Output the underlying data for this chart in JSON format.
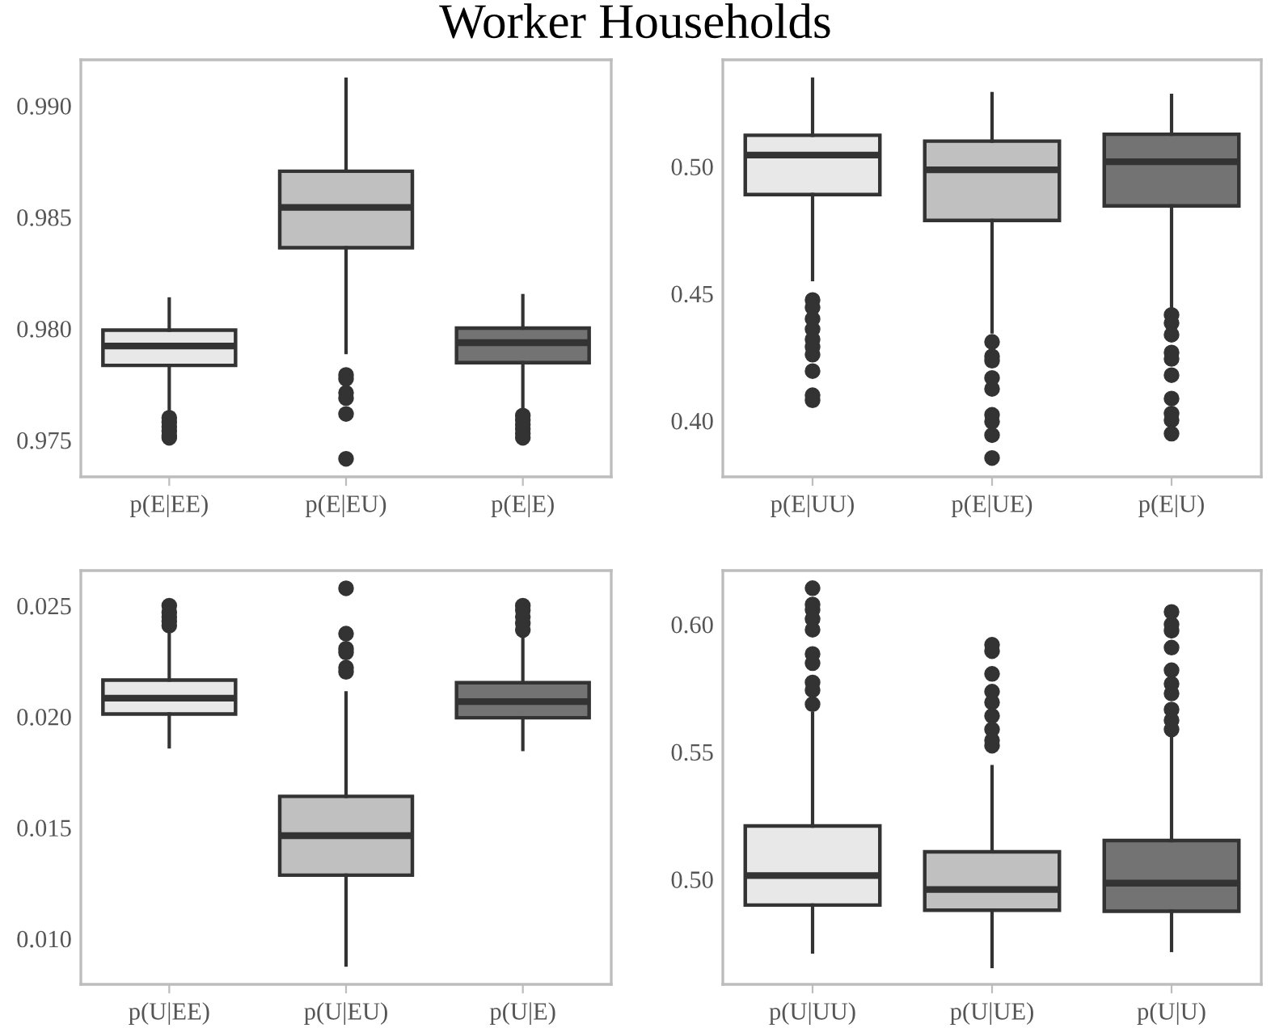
{
  "chart_data": [
    {
      "type": "box",
      "title": "Worker Households",
      "categories": [
        "p(E|EE)",
        "p(E|EU)",
        "p(E|E)"
      ],
      "colors": [
        "#e8e8e8",
        "#c0c0c0",
        "#737373"
      ],
      "grid": false,
      "ylim": [
        0.97335,
        0.99206
      ],
      "yticks": [
        {
          "value": 0.975,
          "label": "0.975"
        },
        {
          "value": 0.98,
          "label": "0.980"
        },
        {
          "value": 0.985,
          "label": "0.985"
        },
        {
          "value": 0.99,
          "label": "0.990"
        }
      ],
      "boxes": [
        {
          "low": 0.9761,
          "q1": 0.97835,
          "median": 0.97922,
          "q3": 0.97993,
          "high": 0.98133,
          "outliers": [
            0.976,
            0.9758,
            0.9756,
            0.9754,
            0.9752,
            0.9751
          ]
        },
        {
          "low": 0.97893,
          "q1": 0.98363,
          "median": 0.98544,
          "q3": 0.98706,
          "high": 0.99119,
          "outliers": [
            0.97792,
            0.97775,
            0.97712,
            0.97688,
            0.97617,
            0.97416
          ]
        },
        {
          "low": 0.9762,
          "q1": 0.97847,
          "median": 0.97937,
          "q3": 0.98002,
          "high": 0.98148,
          "outliers": [
            0.9761,
            0.9759,
            0.9757,
            0.9755,
            0.9753,
            0.9751
          ]
        }
      ]
    },
    {
      "type": "box",
      "categories": [
        "p(E|UU)",
        "p(E|UE)",
        "p(E|U)"
      ],
      "colors": [
        "#e8e8e8",
        "#c0c0c0",
        "#737373"
      ],
      "grid": false,
      "ylim": [
        0.3779,
        0.542
      ],
      "yticks": [
        {
          "value": 0.4,
          "label": "0.40"
        },
        {
          "value": 0.45,
          "label": "0.45"
        },
        {
          "value": 0.5,
          "label": "0.50"
        }
      ],
      "boxes": [
        {
          "low": 0.4555,
          "q1": 0.489,
          "median": 0.5045,
          "q3": 0.5123,
          "high": 0.5344,
          "outliers": [
            0.4475,
            0.4445,
            0.44,
            0.436,
            0.432,
            0.429,
            0.426,
            0.4195,
            0.41,
            0.408
          ]
        },
        {
          "low": 0.4349,
          "q1": 0.4788,
          "median": 0.4987,
          "q3": 0.51,
          "high": 0.5287,
          "outliers": [
            0.431,
            0.4253,
            0.4236,
            0.4168,
            0.4125,
            0.4023,
            0.3996,
            0.3943,
            0.3853
          ]
        },
        {
          "low": 0.4427,
          "q1": 0.4845,
          "median": 0.5019,
          "q3": 0.5127,
          "high": 0.528,
          "outliers": [
            0.4416,
            0.4384,
            0.4338,
            0.4268,
            0.4243,
            0.4179,
            0.4087,
            0.4028,
            0.4002,
            0.3949
          ]
        }
      ]
    },
    {
      "type": "box",
      "categories": [
        "p(U|EE)",
        "p(U|EU)",
        "p(U|E)"
      ],
      "colors": [
        "#e8e8e8",
        "#c0c0c0",
        "#737373"
      ],
      "grid": false,
      "ylim": [
        0.00794,
        0.02658
      ],
      "yticks": [
        {
          "value": 0.01,
          "label": "0.010"
        },
        {
          "value": 0.015,
          "label": "0.015"
        },
        {
          "value": 0.02,
          "label": "0.020"
        },
        {
          "value": 0.025,
          "label": "0.025"
        }
      ],
      "boxes": [
        {
          "low": 0.01864,
          "q1": 0.02012,
          "median": 0.02083,
          "q3": 0.02165,
          "high": 0.024,
          "outliers": [
            0.025,
            0.0247,
            0.0245,
            0.0243,
            0.0241
          ]
        },
        {
          "low": 0.00881,
          "q1": 0.01286,
          "median": 0.01464,
          "q3": 0.01641,
          "high": 0.02107,
          "outliers": [
            0.02578,
            0.02374,
            0.02306,
            0.02289,
            0.02221,
            0.02202
          ]
        },
        {
          "low": 0.01852,
          "q1": 0.01995,
          "median": 0.02068,
          "q3": 0.02153,
          "high": 0.0238,
          "outliers": [
            0.025,
            0.0248,
            0.0245,
            0.0242,
            0.0239
          ]
        }
      ]
    },
    {
      "type": "box",
      "categories": [
        "p(U|UU)",
        "p(U|UE)",
        "p(U|U)"
      ],
      "colors": [
        "#e8e8e8",
        "#c0c0c0",
        "#737373"
      ],
      "grid": false,
      "ylim": [
        0.4588,
        0.6211
      ],
      "yticks": [
        {
          "value": 0.5,
          "label": "0.50"
        },
        {
          "value": 0.55,
          "label": "0.55"
        },
        {
          "value": 0.6,
          "label": "0.60"
        }
      ],
      "boxes": [
        {
          "low": 0.4715,
          "q1": 0.4899,
          "median": 0.5015,
          "q3": 0.5209,
          "high": 0.5651,
          "outliers": [
            0.6142,
            0.6078,
            0.6057,
            0.6021,
            0.5979,
            0.5884,
            0.5848,
            0.5772,
            0.5742,
            0.5687
          ]
        },
        {
          "low": 0.4658,
          "q1": 0.4879,
          "median": 0.496,
          "q3": 0.5108,
          "high": 0.5442,
          "outliers": [
            0.592,
            0.5895,
            0.5806,
            0.5736,
            0.5694,
            0.5641,
            0.5588,
            0.5545,
            0.5524
          ]
        },
        {
          "low": 0.4721,
          "q1": 0.4875,
          "median": 0.4985,
          "q3": 0.5152,
          "high": 0.5567,
          "outliers": [
            0.6049,
            0.6,
            0.5975,
            0.5909,
            0.582,
            0.5767,
            0.5729,
            0.5666,
            0.5624,
            0.5588
          ]
        }
      ]
    }
  ]
}
